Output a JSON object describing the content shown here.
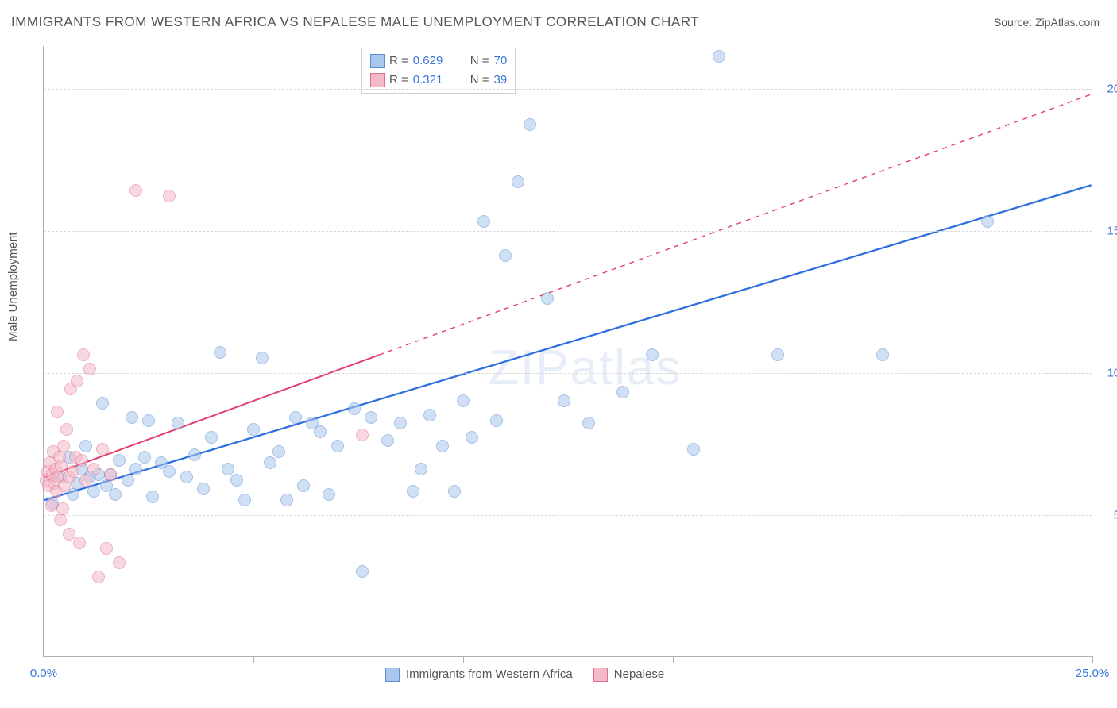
{
  "title": "IMMIGRANTS FROM WESTERN AFRICA VS NEPALESE MALE UNEMPLOYMENT CORRELATION CHART",
  "source_label": "Source: ",
  "source_name": "ZipAtlas.com",
  "watermark": "ZIPatlas",
  "ylabel": "Male Unemployment",
  "chart": {
    "type": "scatter-correlation",
    "xlim": [
      0,
      25
    ],
    "ylim": [
      0,
      21.5
    ],
    "x_ticks": [
      0,
      5,
      10,
      15,
      20,
      25
    ],
    "x_tick_labels": [
      "0.0%",
      "",
      "",
      "",
      "",
      "25.0%"
    ],
    "y_grid": [
      5,
      10,
      15,
      20,
      21.3
    ],
    "y_tick_labels": [
      "5.0%",
      "10.0%",
      "15.0%",
      "20.0%",
      ""
    ],
    "background_color": "#ffffff",
    "grid_color": "#d8d8d8",
    "axis_color": "#b0b0b0",
    "tick_label_color": "#3a76d6",
    "marker_radius": 8,
    "marker_opacity": 0.55,
    "series": [
      {
        "name": "Immigrants from Western Africa",
        "color_fill": "#a9c7ec",
        "color_stroke": "#5a8fd6",
        "R": 0.629,
        "N": 70,
        "trend": {
          "x1": 0,
          "y1": 5.5,
          "x2": 25,
          "y2": 16.6,
          "solid_until_x": 25,
          "stroke": "#2d6fe0",
          "width": 2.3
        },
        "points": [
          [
            0.2,
            5.4
          ],
          [
            0.4,
            6.3
          ],
          [
            0.6,
            7.0
          ],
          [
            0.7,
            5.7
          ],
          [
            0.8,
            6.1
          ],
          [
            0.9,
            6.6
          ],
          [
            1.0,
            7.4
          ],
          [
            1.1,
            6.3
          ],
          [
            1.2,
            5.8
          ],
          [
            1.3,
            6.4
          ],
          [
            1.4,
            8.9
          ],
          [
            1.5,
            6.0
          ],
          [
            1.6,
            6.4
          ],
          [
            1.7,
            5.7
          ],
          [
            1.8,
            6.9
          ],
          [
            2.0,
            6.2
          ],
          [
            2.1,
            8.4
          ],
          [
            2.2,
            6.6
          ],
          [
            2.4,
            7.0
          ],
          [
            2.5,
            8.3
          ],
          [
            2.6,
            5.6
          ],
          [
            2.8,
            6.8
          ],
          [
            3.0,
            6.5
          ],
          [
            3.2,
            8.2
          ],
          [
            3.4,
            6.3
          ],
          [
            3.6,
            7.1
          ],
          [
            3.8,
            5.9
          ],
          [
            4.0,
            7.7
          ],
          [
            4.2,
            10.7
          ],
          [
            4.4,
            6.6
          ],
          [
            4.6,
            6.2
          ],
          [
            4.8,
            5.5
          ],
          [
            5.0,
            8.0
          ],
          [
            5.2,
            10.5
          ],
          [
            5.4,
            6.8
          ],
          [
            5.6,
            7.2
          ],
          [
            5.8,
            5.5
          ],
          [
            6.0,
            8.4
          ],
          [
            6.2,
            6.0
          ],
          [
            6.4,
            8.2
          ],
          [
            6.8,
            5.7
          ],
          [
            7.0,
            7.4
          ],
          [
            7.4,
            8.7
          ],
          [
            7.6,
            3.0
          ],
          [
            7.8,
            8.4
          ],
          [
            8.2,
            7.6
          ],
          [
            8.5,
            8.2
          ],
          [
            8.8,
            5.8
          ],
          [
            9.2,
            8.5
          ],
          [
            9.5,
            7.4
          ],
          [
            9.8,
            5.8
          ],
          [
            10.0,
            9.0
          ],
          [
            10.2,
            7.7
          ],
          [
            10.5,
            15.3
          ],
          [
            10.8,
            8.3
          ],
          [
            11.0,
            14.1
          ],
          [
            11.3,
            16.7
          ],
          [
            11.6,
            18.7
          ],
          [
            12.0,
            12.6
          ],
          [
            12.4,
            9.0
          ],
          [
            13.0,
            8.2
          ],
          [
            13.8,
            9.3
          ],
          [
            14.5,
            10.6
          ],
          [
            15.5,
            7.3
          ],
          [
            16.1,
            21.1
          ],
          [
            17.5,
            10.6
          ],
          [
            20.0,
            10.6
          ],
          [
            22.5,
            15.3
          ],
          [
            6.6,
            7.9
          ],
          [
            9.0,
            6.6
          ]
        ]
      },
      {
        "name": "Nepalese",
        "color_fill": "#f4b9c7",
        "color_stroke": "#e06f8d",
        "R": 0.321,
        "N": 39,
        "trend": {
          "x1": 0,
          "y1": 6.3,
          "x2": 25,
          "y2": 19.8,
          "solid_until_x": 8,
          "stroke": "#e23d6d",
          "width": 2.0
        },
        "points": [
          [
            0.05,
            6.2
          ],
          [
            0.1,
            6.5
          ],
          [
            0.12,
            6.0
          ],
          [
            0.15,
            6.8
          ],
          [
            0.18,
            5.3
          ],
          [
            0.2,
            6.4
          ],
          [
            0.22,
            7.2
          ],
          [
            0.25,
            6.1
          ],
          [
            0.28,
            6.6
          ],
          [
            0.3,
            5.8
          ],
          [
            0.32,
            8.6
          ],
          [
            0.35,
            6.3
          ],
          [
            0.38,
            7.0
          ],
          [
            0.4,
            4.8
          ],
          [
            0.42,
            6.7
          ],
          [
            0.45,
            5.2
          ],
          [
            0.48,
            7.4
          ],
          [
            0.5,
            6.0
          ],
          [
            0.55,
            8.0
          ],
          [
            0.6,
            6.3
          ],
          [
            0.65,
            9.4
          ],
          [
            0.7,
            6.5
          ],
          [
            0.75,
            7.0
          ],
          [
            0.8,
            9.7
          ],
          [
            0.85,
            4.0
          ],
          [
            0.9,
            6.9
          ],
          [
            0.95,
            10.6
          ],
          [
            1.0,
            6.2
          ],
          [
            1.1,
            10.1
          ],
          [
            1.2,
            6.6
          ],
          [
            1.3,
            2.8
          ],
          [
            1.4,
            7.3
          ],
          [
            1.5,
            3.8
          ],
          [
            1.6,
            6.4
          ],
          [
            1.8,
            3.3
          ],
          [
            2.2,
            16.4
          ],
          [
            3.0,
            16.2
          ],
          [
            0.6,
            4.3
          ],
          [
            7.6,
            7.8
          ]
        ]
      }
    ],
    "legend_top": {
      "rows": [
        {
          "swatch_fill": "#a9c7ec",
          "swatch_stroke": "#5a8fd6",
          "r_label": "R =",
          "r_value": "0.629",
          "n_label": "N =",
          "n_value": "70"
        },
        {
          "swatch_fill": "#f4b9c7",
          "swatch_stroke": "#e06f8d",
          "r_label": "R =",
          "r_value": "0.321",
          "n_label": "N =",
          "n_value": "39"
        }
      ]
    },
    "legend_bottom": [
      {
        "swatch_fill": "#a9c7ec",
        "swatch_stroke": "#5a8fd6",
        "label": "Immigrants from Western Africa"
      },
      {
        "swatch_fill": "#f4b9c7",
        "swatch_stroke": "#e06f8d",
        "label": "Nepalese"
      }
    ]
  }
}
